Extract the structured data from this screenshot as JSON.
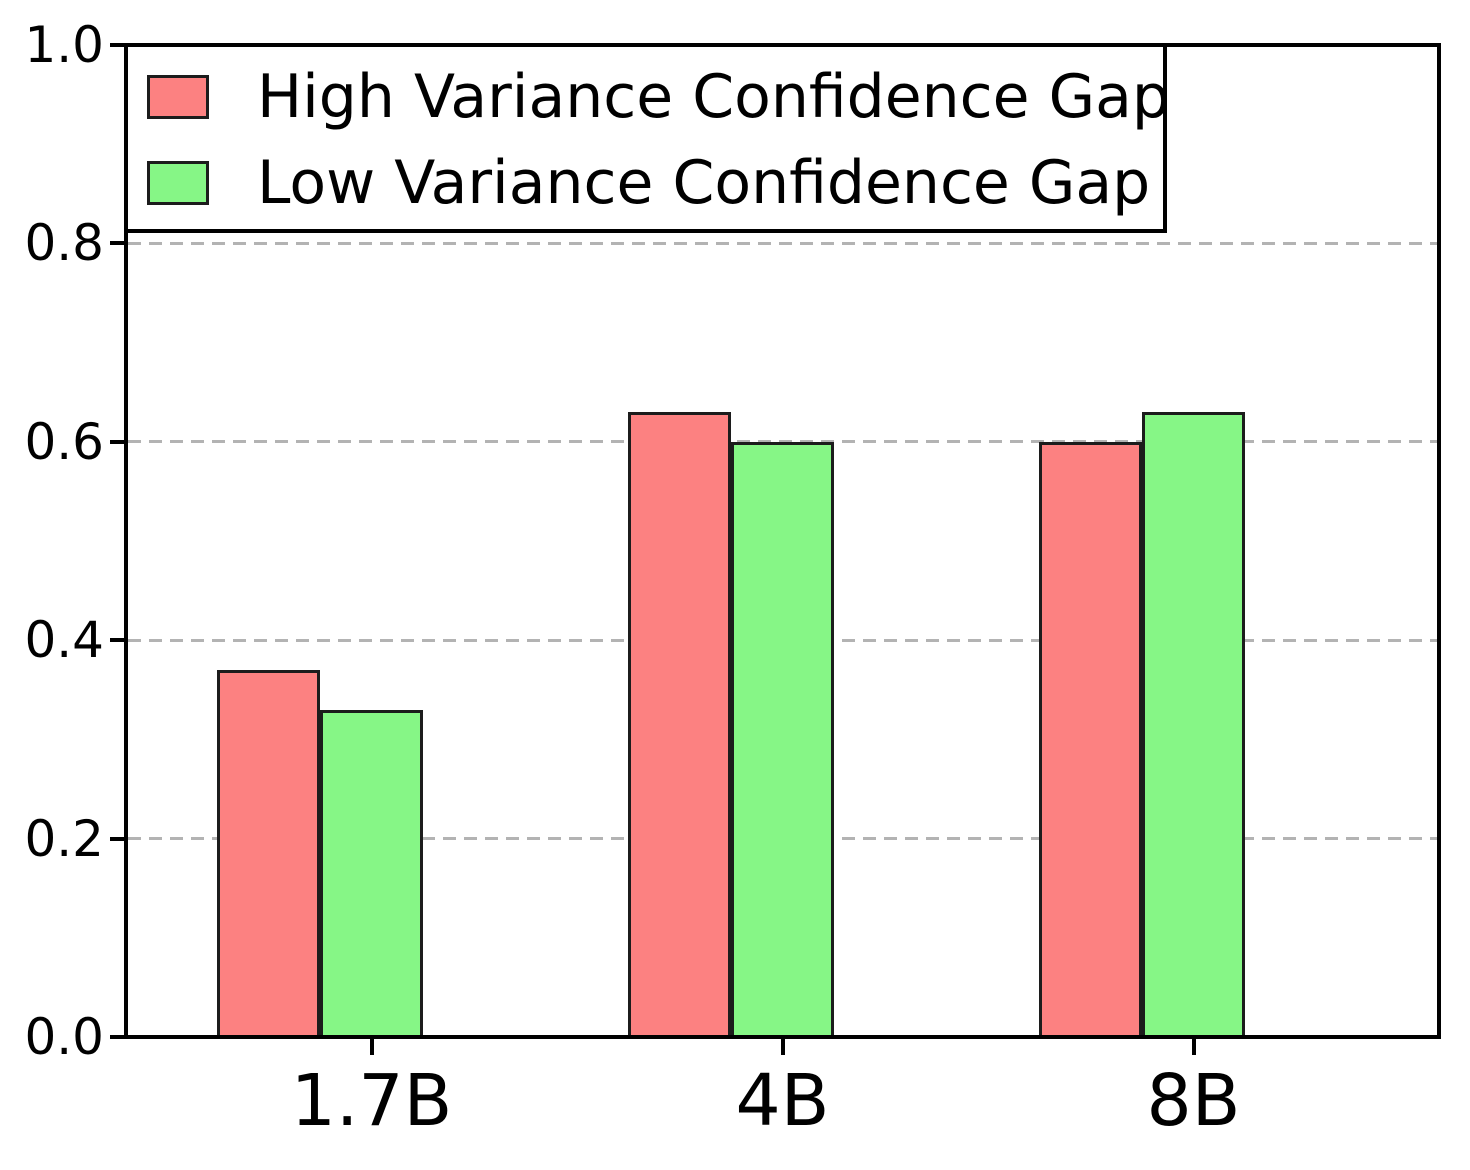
{
  "chart_data": {
    "type": "bar",
    "title": "",
    "xlabel": "",
    "ylabel": "",
    "categories": [
      "1.7B",
      "4B",
      "8B"
    ],
    "series": [
      {
        "name": "High Variance Confidence Gap",
        "color": "#FC8181",
        "edge_color": "#1c1c1c",
        "values": [
          0.37,
          0.63,
          0.6
        ]
      },
      {
        "name": "Low Variance Confidence Gap",
        "color": "#86F686",
        "edge_color": "#1c1c1c",
        "values": [
          0.33,
          0.6,
          0.63
        ]
      }
    ],
    "ylim": [
      0.0,
      1.0
    ],
    "yticks": [
      "0.0",
      "0.2",
      "0.4",
      "0.6",
      "0.8",
      "1.0"
    ],
    "gridline_values": [
      0.2,
      0.4,
      0.6,
      0.8
    ],
    "grid_style": "dashed",
    "grid_color": "#b3b3b3",
    "axis_color": "#000000",
    "legend_position": "upper-left",
    "background_color": "#ffffff"
  }
}
